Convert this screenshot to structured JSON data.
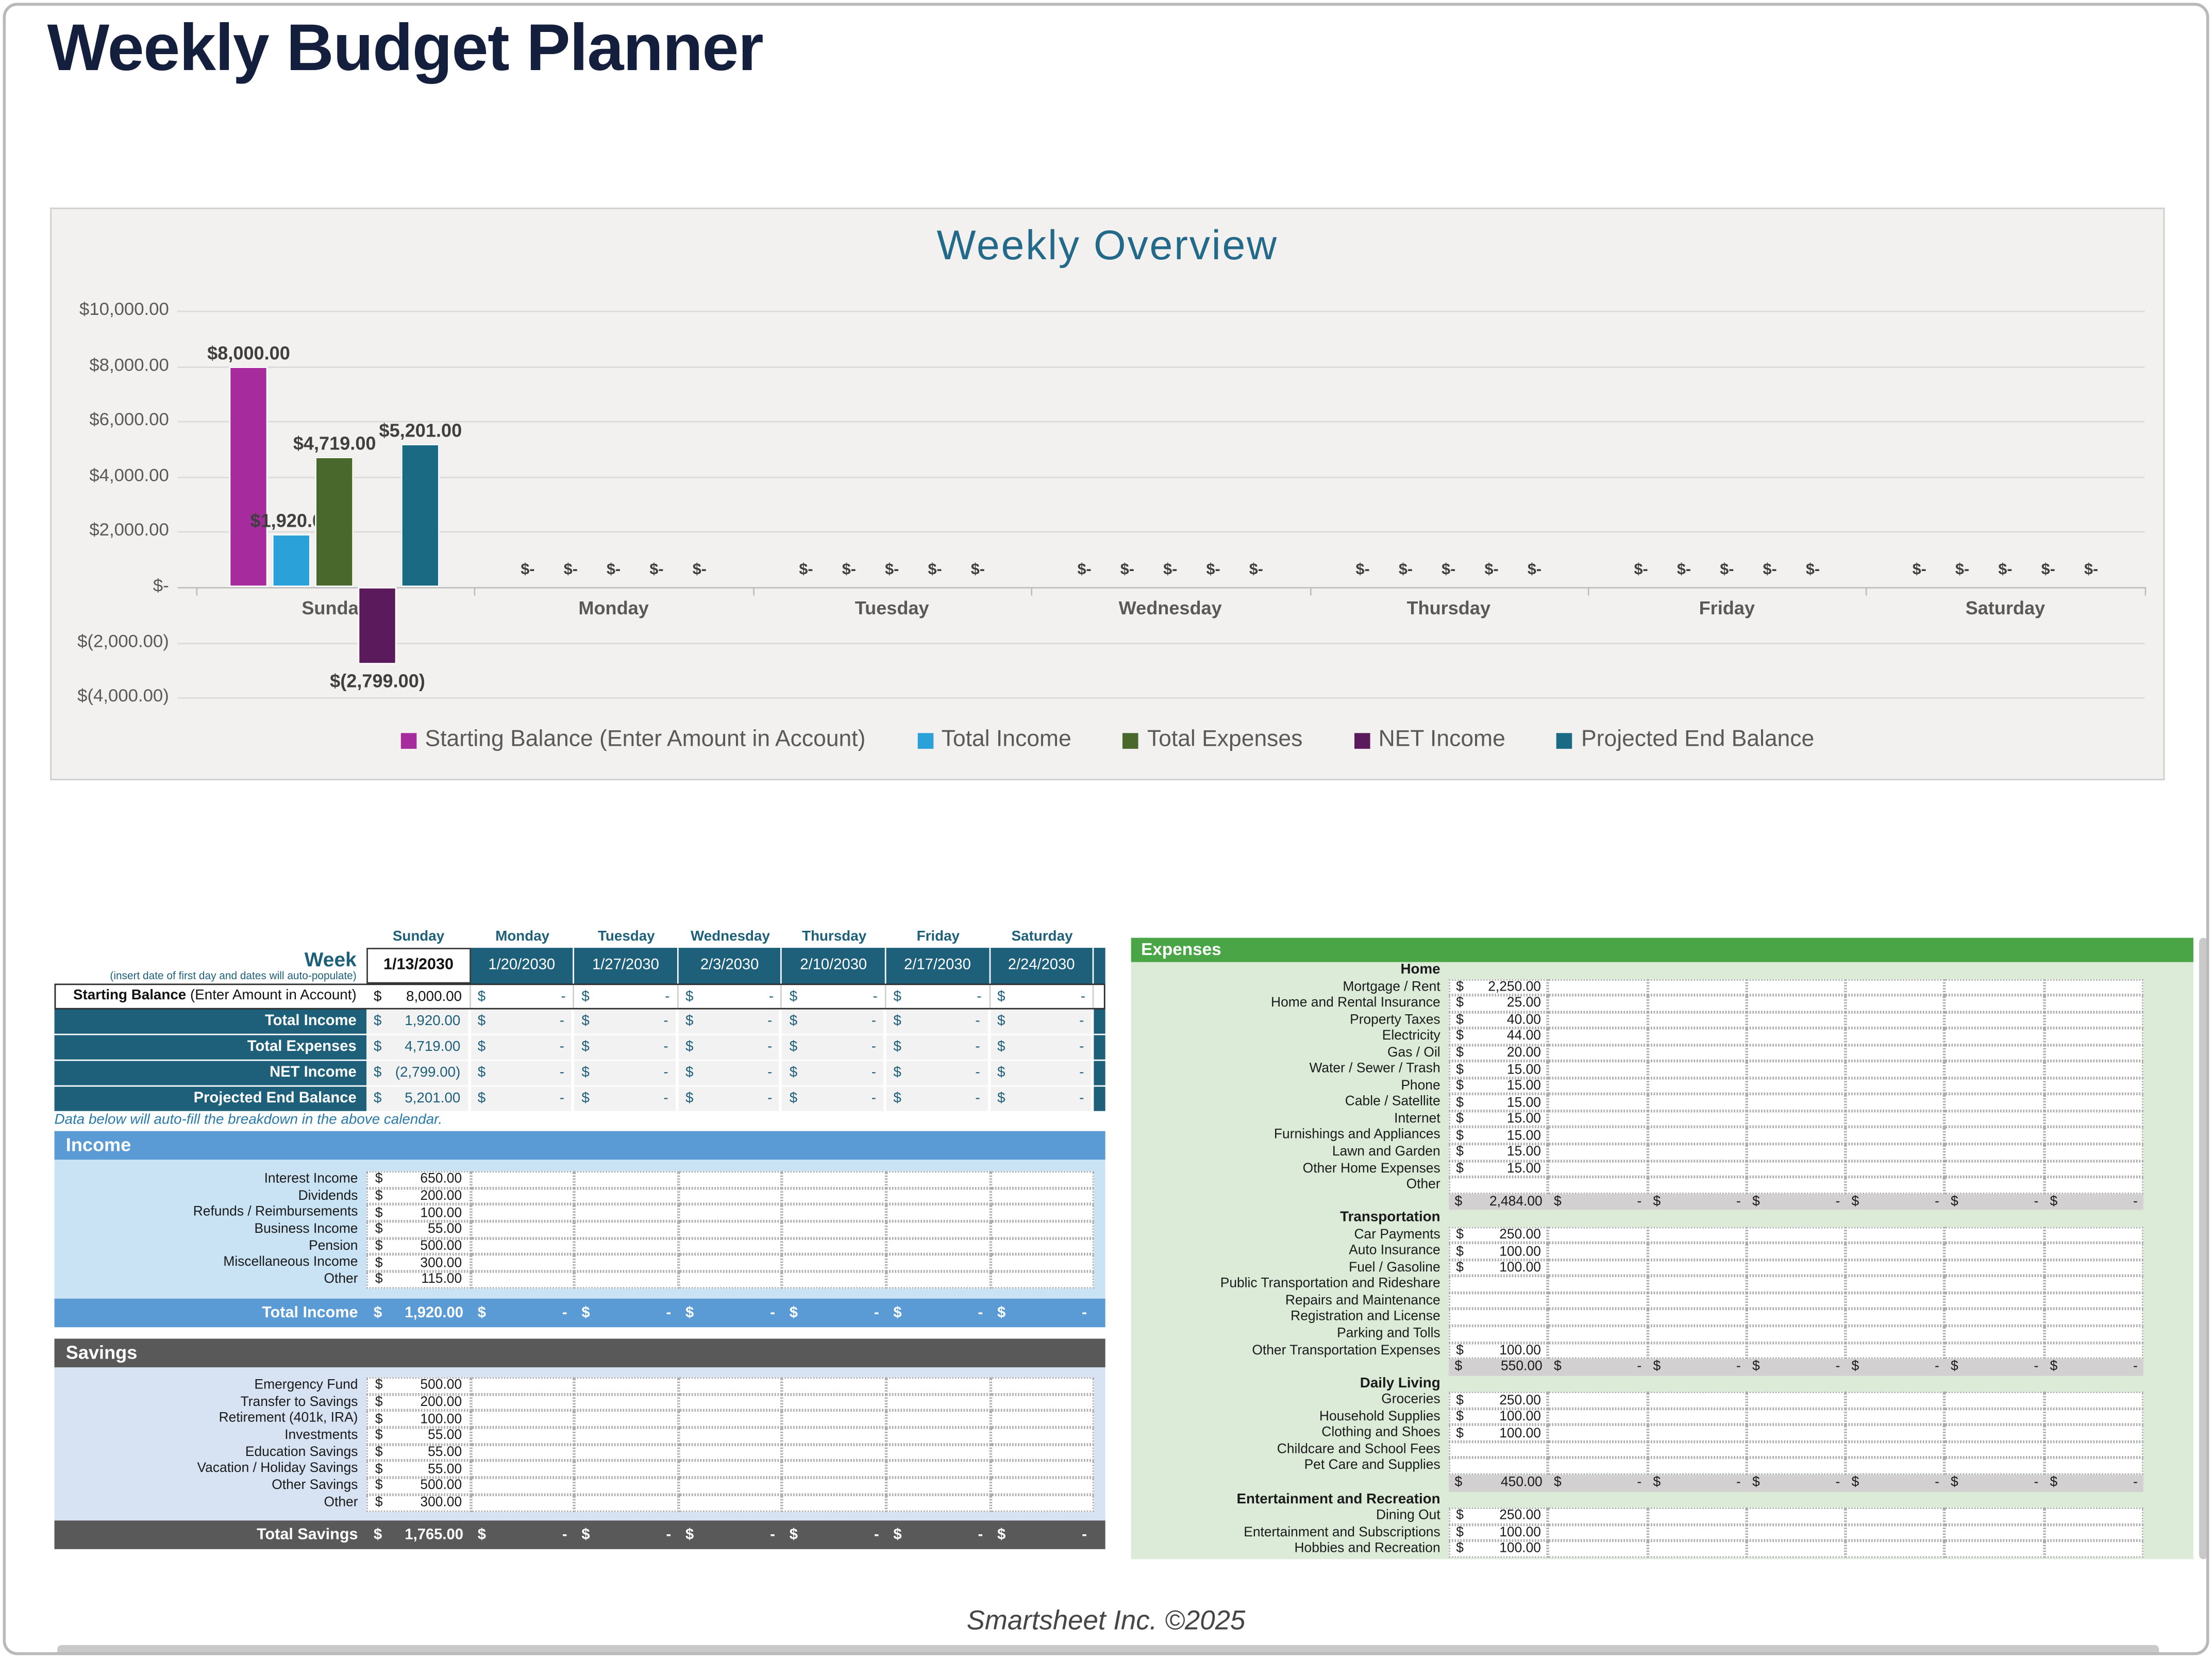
{
  "page": {
    "title": "Weekly Budget Planner",
    "footer": "Smartsheet Inc. ©2025"
  },
  "currency": "$",
  "dash": "-",
  "note": "Data below will auto-fill the breakdown in the above calendar.",
  "chart_data": {
    "type": "bar",
    "title": "Weekly Overview",
    "categories": [
      "Sunday",
      "Monday",
      "Tuesday",
      "Wednesday",
      "Thursday",
      "Friday",
      "Saturday"
    ],
    "series": [
      {
        "name": "Starting Balance (Enter Amount in Account)",
        "color": "#A62C9E",
        "values": [
          8000,
          0,
          0,
          0,
          0,
          0,
          0
        ],
        "label": "$8,000.00"
      },
      {
        "name": "Total Income",
        "color": "#2BA1DA",
        "values": [
          1920,
          0,
          0,
          0,
          0,
          0,
          0
        ],
        "label": "$1,920.00"
      },
      {
        "name": "Total Expenses",
        "color": "#48682C",
        "values": [
          4719,
          0,
          0,
          0,
          0,
          0,
          0
        ],
        "label": "$4,719.00"
      },
      {
        "name": "NET Income",
        "color": "#5B1A5B",
        "values": [
          -2799,
          0,
          0,
          0,
          0,
          0,
          0
        ],
        "label": "$(2,799.00)"
      },
      {
        "name": "Projected End Balance",
        "color": "#1A6A84",
        "values": [
          5201,
          0,
          0,
          0,
          0,
          0,
          0
        ],
        "label": "$5,201.00"
      }
    ],
    "zero_label": "$-",
    "y_ticks": [
      {
        "label": "$10,000.00",
        "value": 10000
      },
      {
        "label": "$8,000.00",
        "value": 8000
      },
      {
        "label": "$6,000.00",
        "value": 6000
      },
      {
        "label": "$4,000.00",
        "value": 4000
      },
      {
        "label": "$2,000.00",
        "value": 2000
      },
      {
        "label": "$-",
        "value": 0
      },
      {
        "label": "$(2,000.00)",
        "value": -2000
      },
      {
        "label": "$(4,000.00)",
        "value": -4000
      }
    ],
    "ylim": [
      -4000,
      10000
    ],
    "grid": true,
    "legend_position": "bottom"
  },
  "week_table": {
    "week_label": "Week",
    "week_note": "(insert date of first day and dates will auto-populate)",
    "dates": [
      "1/13/2030",
      "1/20/2030",
      "1/27/2030",
      "2/3/2030",
      "2/10/2030",
      "2/17/2030",
      "2/24/2030"
    ],
    "starting_balance": {
      "label_bold": "Starting Balance",
      "label_note": " (Enter Amount in Account)",
      "sunday": "8,000.00"
    },
    "rows": [
      {
        "label": "Total Income",
        "sunday": "1,920.00"
      },
      {
        "label": "Total Expenses",
        "sunday": "4,719.00"
      },
      {
        "label": "NET Income",
        "sunday": "(2,799.00)"
      },
      {
        "label": "Projected End Balance",
        "sunday": "5,201.00"
      }
    ]
  },
  "income": {
    "header": "Income",
    "rows": [
      [
        "Interest Income",
        "650.00"
      ],
      [
        "Dividends",
        "200.00"
      ],
      [
        "Refunds / Reimbursements",
        "100.00"
      ],
      [
        "Business Income",
        "55.00"
      ],
      [
        "Pension",
        "500.00"
      ],
      [
        "Miscellaneous Income",
        "300.00"
      ],
      [
        "Other",
        "115.00"
      ]
    ],
    "total_label": "Total Income",
    "total_value": "1,920.00"
  },
  "savings": {
    "header": "Savings",
    "rows": [
      [
        "Emergency Fund",
        "500.00"
      ],
      [
        "Transfer to Savings",
        "200.00"
      ],
      [
        "Retirement (401k, IRA)",
        "100.00"
      ],
      [
        "Investments",
        "55.00"
      ],
      [
        "Education Savings",
        "55.00"
      ],
      [
        "Vacation / Holiday Savings",
        "55.00"
      ],
      [
        "Other Savings",
        "500.00"
      ],
      [
        "Other",
        "300.00"
      ]
    ],
    "total_label": "Total Savings",
    "total_value": "1,765.00"
  },
  "expenses": {
    "header": "Expenses",
    "sections": [
      {
        "name": "Home",
        "items": [
          [
            "Mortgage / Rent",
            "2,250.00"
          ],
          [
            "Home and Rental Insurance",
            "25.00"
          ],
          [
            "Property Taxes",
            "40.00"
          ],
          [
            "Electricity",
            "44.00"
          ],
          [
            "Gas / Oil",
            "20.00"
          ],
          [
            "Water / Sewer / Trash",
            "15.00"
          ],
          [
            "Phone",
            "15.00"
          ],
          [
            "Cable / Satellite",
            "15.00"
          ],
          [
            "Internet",
            "15.00"
          ],
          [
            "Furnishings and Appliances",
            "15.00"
          ],
          [
            "Lawn and Garden",
            "15.00"
          ],
          [
            "Other Home Expenses",
            "15.00"
          ],
          [
            "Other",
            ""
          ]
        ],
        "subtotal": "2,484.00"
      },
      {
        "name": "Transportation",
        "items": [
          [
            "Car Payments",
            "250.00"
          ],
          [
            "Auto Insurance",
            "100.00"
          ],
          [
            "Fuel / Gasoline",
            "100.00"
          ],
          [
            "Public Transportation and Rideshare",
            ""
          ],
          [
            "Repairs and Maintenance",
            ""
          ],
          [
            "Registration and License",
            ""
          ],
          [
            "Parking and Tolls",
            ""
          ],
          [
            "Other Transportation Expenses",
            "100.00"
          ]
        ],
        "subtotal": "550.00"
      },
      {
        "name": "Daily Living",
        "items": [
          [
            "Groceries",
            "250.00"
          ],
          [
            "Household Supplies",
            "100.00"
          ],
          [
            "Clothing and Shoes",
            "100.00"
          ],
          [
            "Childcare and School Fees",
            ""
          ],
          [
            "Pet Care and Supplies",
            ""
          ]
        ],
        "subtotal": "450.00"
      },
      {
        "name": "Entertainment and Recreation",
        "items": [
          [
            "Dining Out",
            "250.00"
          ],
          [
            "Entertainment and Subscriptions",
            "100.00"
          ],
          [
            "Hobbies and Recreation",
            "100.00"
          ]
        ],
        "subtotal": null
      }
    ]
  },
  "colors": {
    "title_navy": "#141F3D",
    "chart_bg": "#F2F1F0",
    "chart_title_teal": "#23698A",
    "week_teal": "#1E5F7A",
    "income_blue": "#5B9BD5",
    "income_body": "#C9E3F4",
    "savings_gray": "#595959",
    "savings_body": "#D7E3F2",
    "expenses_green": "#4AA546",
    "expenses_body": "#DCEBD8",
    "subtotal_gray": "#D2D0D0",
    "computed_cell_gray": "#F2F2F2"
  }
}
